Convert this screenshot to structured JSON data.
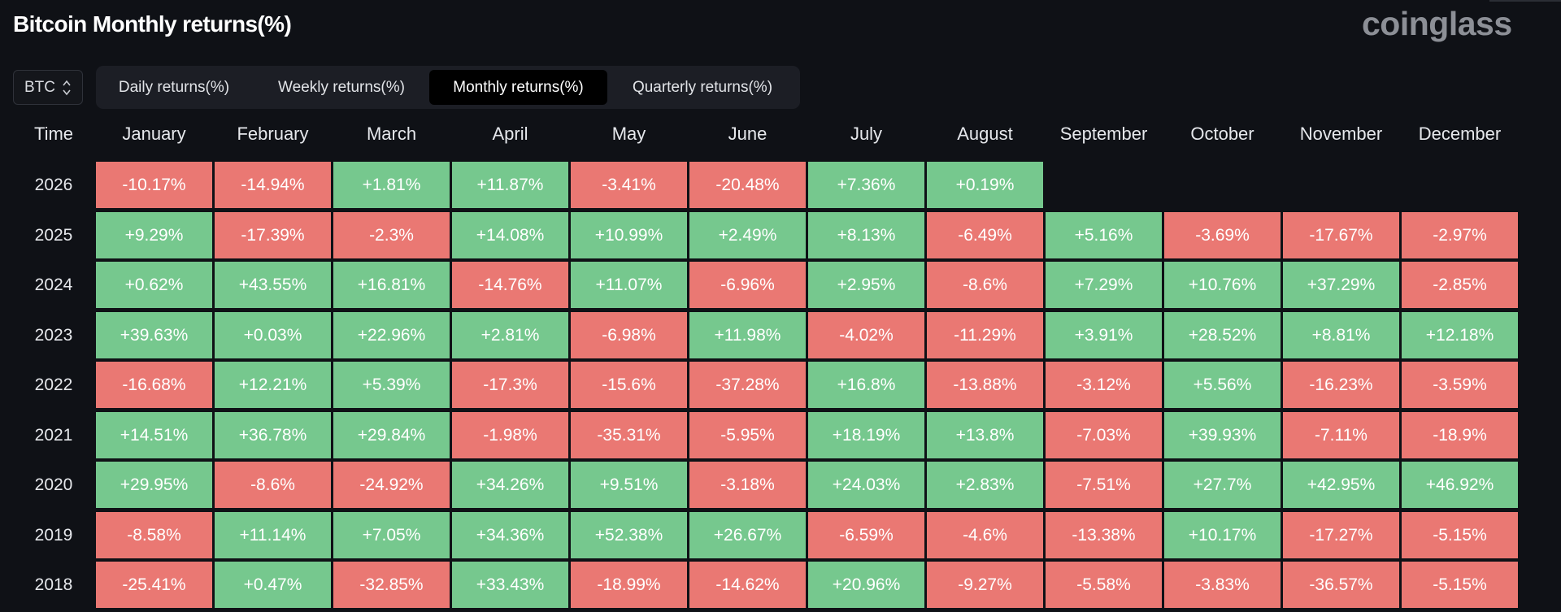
{
  "title": "Bitcoin Monthly returns(%)",
  "logo_text": "coinglass",
  "asset_select": {
    "value": "BTC",
    "icon": "chevron-updown-icon"
  },
  "tabs": [
    {
      "label": "Daily returns(%)",
      "active": false
    },
    {
      "label": "Weekly returns(%)",
      "active": false
    },
    {
      "label": "Monthly returns(%)",
      "active": true
    },
    {
      "label": "Quarterly returns(%)",
      "active": false
    }
  ],
  "colors": {
    "positive": "#76c88e",
    "negative": "#ea7873",
    "background": "#0f1116",
    "active_tab": "#000000"
  },
  "table": {
    "time_header": "Time",
    "months": [
      "January",
      "February",
      "March",
      "April",
      "May",
      "June",
      "July",
      "August",
      "September",
      "October",
      "November",
      "December"
    ],
    "rows": [
      {
        "year": "2026",
        "values": [
          "-10.17%",
          "-14.94%",
          "+1.81%",
          "+11.87%",
          "-3.41%",
          "-20.48%",
          "+7.36%",
          "+0.19%"
        ]
      },
      {
        "year": "2025",
        "values": [
          "+9.29%",
          "-17.39%",
          "-2.3%",
          "+14.08%",
          "+10.99%",
          "+2.49%",
          "+8.13%",
          "-6.49%",
          "+5.16%",
          "-3.69%",
          "-17.67%",
          "-2.97%"
        ]
      },
      {
        "year": "2024",
        "values": [
          "+0.62%",
          "+43.55%",
          "+16.81%",
          "-14.76%",
          "+11.07%",
          "-6.96%",
          "+2.95%",
          "-8.6%",
          "+7.29%",
          "+10.76%",
          "+37.29%",
          "-2.85%"
        ]
      },
      {
        "year": "2023",
        "values": [
          "+39.63%",
          "+0.03%",
          "+22.96%",
          "+2.81%",
          "-6.98%",
          "+11.98%",
          "-4.02%",
          "-11.29%",
          "+3.91%",
          "+28.52%",
          "+8.81%",
          "+12.18%"
        ]
      },
      {
        "year": "2022",
        "values": [
          "-16.68%",
          "+12.21%",
          "+5.39%",
          "-17.3%",
          "-15.6%",
          "-37.28%",
          "+16.8%",
          "-13.88%",
          "-3.12%",
          "+5.56%",
          "-16.23%",
          "-3.59%"
        ]
      },
      {
        "year": "2021",
        "values": [
          "+14.51%",
          "+36.78%",
          "+29.84%",
          "-1.98%",
          "-35.31%",
          "-5.95%",
          "+18.19%",
          "+13.8%",
          "-7.03%",
          "+39.93%",
          "-7.11%",
          "-18.9%"
        ]
      },
      {
        "year": "2020",
        "values": [
          "+29.95%",
          "-8.6%",
          "-24.92%",
          "+34.26%",
          "+9.51%",
          "-3.18%",
          "+24.03%",
          "+2.83%",
          "-7.51%",
          "+27.7%",
          "+42.95%",
          "+46.92%"
        ]
      },
      {
        "year": "2019",
        "values": [
          "-8.58%",
          "+11.14%",
          "+7.05%",
          "+34.36%",
          "+52.38%",
          "+26.67%",
          "-6.59%",
          "-4.6%",
          "-13.38%",
          "+10.17%",
          "-17.27%",
          "-5.15%"
        ]
      },
      {
        "year": "2018",
        "values": [
          "-25.41%",
          "+0.47%",
          "-32.85%",
          "+33.43%",
          "-18.99%",
          "-14.62%",
          "+20.96%",
          "-9.27%",
          "-5.58%",
          "-3.83%",
          "-36.57%",
          "-5.15%"
        ]
      }
    ]
  }
}
